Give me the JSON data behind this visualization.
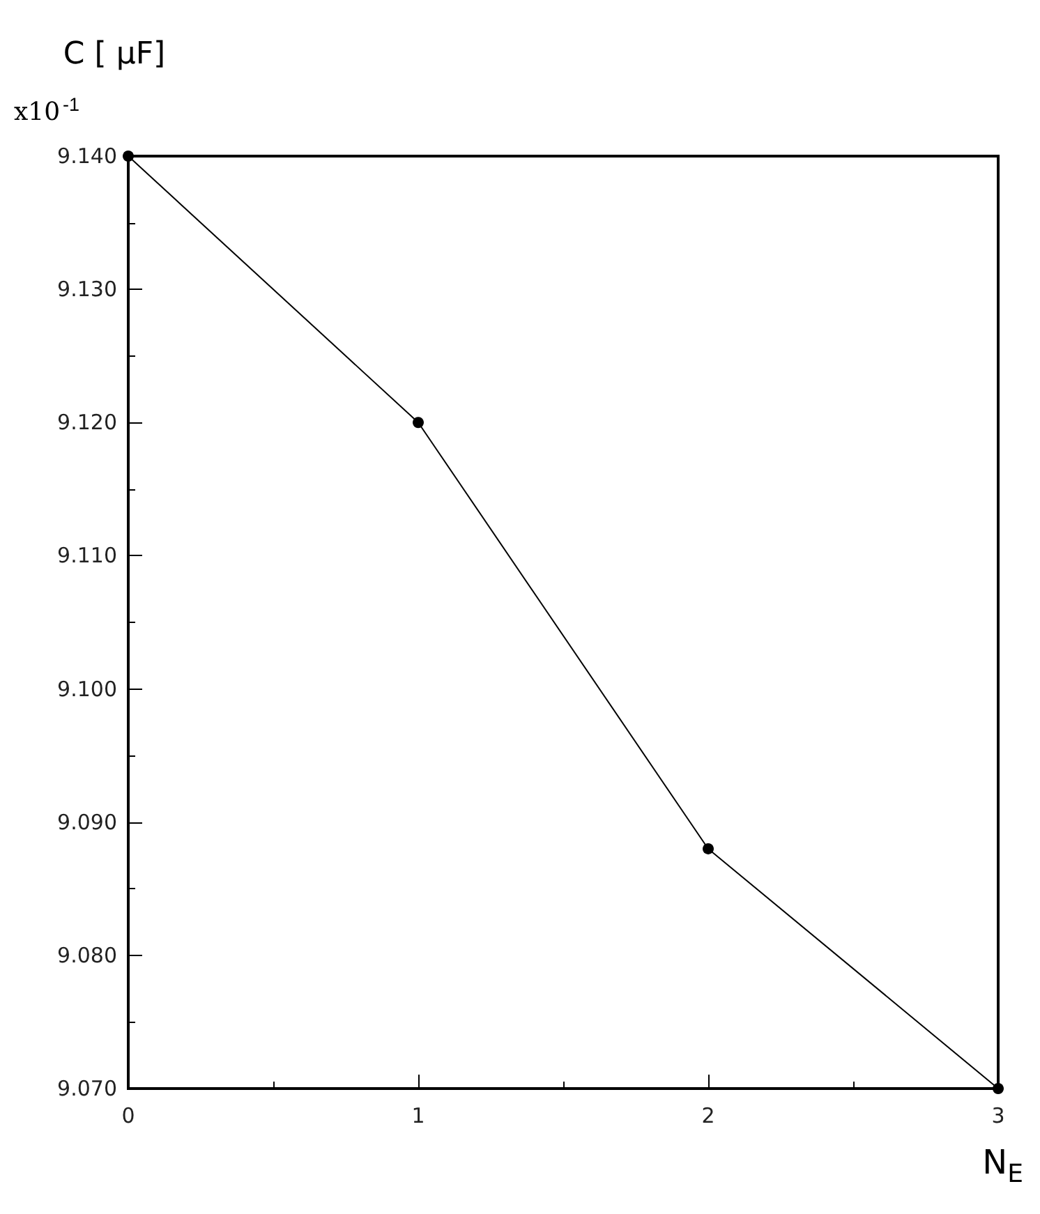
{
  "chart_data": {
    "type": "line",
    "xlabel": "N$_{E}$",
    "ylabel": "C [ μF]",
    "annotations": [
      "x10$^{-1}$"
    ],
    "x": [
      0,
      1,
      2,
      3
    ],
    "series": [
      {
        "color": "#000000",
        "values": [
          9.14,
          9.12,
          9.088,
          9.07
        ]
      }
    ],
    "xlim": [
      0,
      3
    ],
    "xticks": [
      0,
      1,
      2,
      3
    ],
    "ylim": [
      9.07,
      9.14
    ],
    "yticks": [
      {
        "value": 9.07,
        "label": "9.070"
      },
      {
        "value": 9.08,
        "label": "9.080"
      },
      {
        "value": 9.09,
        "label": "9.090"
      },
      {
        "value": 9.1,
        "label": "9.100"
      },
      {
        "value": 9.11,
        "label": "9.110"
      },
      {
        "value": 9.12,
        "label": "9.120"
      },
      {
        "value": 9.13,
        "label": "9.130"
      },
      {
        "value": 9.14,
        "label": "9.140"
      }
    ],
    "grid": false,
    "marker": "circle",
    "line_style": "solid"
  }
}
